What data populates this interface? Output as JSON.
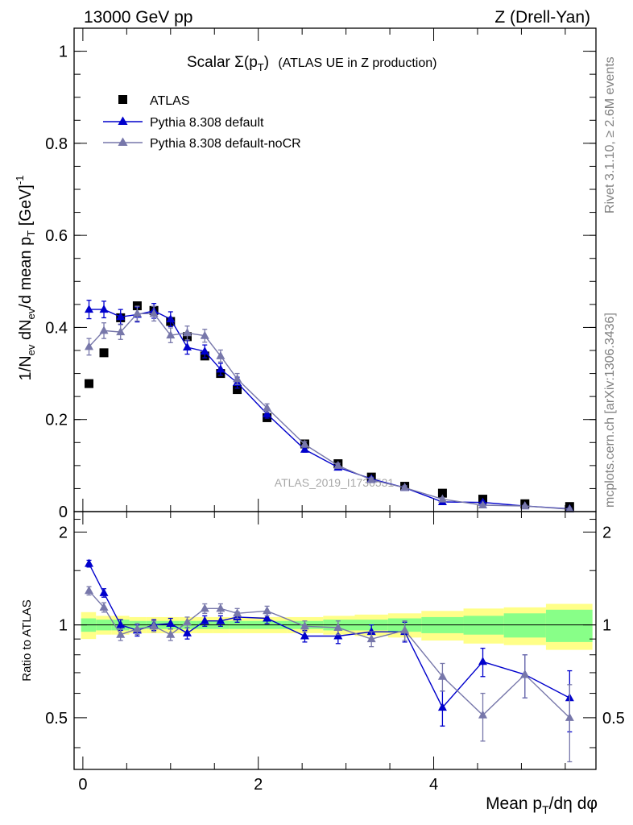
{
  "header": {
    "left": "13000 GeV pp",
    "right": "Z (Drell-Yan)"
  },
  "side_labels": {
    "rivet": "Rivet 3.1.10, ≥ 2.6M events",
    "mcplots": "mcplots.cern.ch [arXiv:1306.3436]"
  },
  "watermark": "ATLAS_2019_I1736531",
  "chart_data": [
    {
      "type": "scatter",
      "panel": "main",
      "title_main": "Scalar Σ(p",
      "title_sub": "T",
      "title_close": ")",
      "title_extra": "(ATLAS UE in Z production)",
      "ylabel": "1/N_ev dN_ev/d mean p_T [GeV]^-1",
      "ylim": [
        0,
        1.05
      ],
      "xlim": [
        -0.1,
        5.85
      ],
      "yticks": [
        0,
        0.2,
        0.4,
        0.6,
        0.8,
        1
      ],
      "ytick_labels": [
        "0",
        "0.2",
        "0.4",
        "0.6",
        "0.8",
        "1"
      ],
      "legend_position": "top-left",
      "x": [
        0.07,
        0.24,
        0.43,
        0.62,
        0.81,
        1.0,
        1.19,
        1.39,
        1.57,
        1.76,
        2.1,
        2.53,
        2.91,
        3.29,
        3.67,
        4.1,
        4.56,
        5.04,
        5.55
      ],
      "series": [
        {
          "name": "ATLAS",
          "color": "#000000",
          "marker": "square",
          "values": [
            0.278,
            0.345,
            0.421,
            0.447,
            0.437,
            0.413,
            0.38,
            0.338,
            0.3,
            0.265,
            0.204,
            0.147,
            0.104,
            0.075,
            0.055,
            0.04,
            0.027,
            0.017,
            0.011
          ],
          "errors": [
            0.006,
            0.006,
            0.006,
            0.006,
            0.006,
            0.006,
            0.006,
            0.005,
            0.005,
            0.005,
            0.004,
            0.003,
            0.003,
            0.002,
            0.002,
            0.002,
            0.002,
            0.001,
            0.001
          ]
        },
        {
          "name": "Pythia 8.308 default",
          "color": "#0000cc",
          "marker": "triangle",
          "values": [
            0.439,
            0.439,
            0.423,
            0.428,
            0.436,
            0.418,
            0.357,
            0.348,
            0.309,
            0.28,
            0.212,
            0.135,
            0.096,
            0.071,
            0.052,
            0.021,
            0.02,
            0.012,
            0.006
          ],
          "errors": [
            0.02,
            0.018,
            0.016,
            0.016,
            0.016,
            0.016,
            0.015,
            0.014,
            0.013,
            0.012,
            0.009,
            0.006,
            0.005,
            0.004,
            0.004,
            0.003,
            0.003,
            0.002,
            0.002
          ]
        },
        {
          "name": "Pythia 8.308 default-noCR",
          "color": "#7777aa",
          "marker": "triangle",
          "values": [
            0.358,
            0.393,
            0.39,
            0.43,
            0.43,
            0.383,
            0.388,
            0.382,
            0.338,
            0.288,
            0.225,
            0.146,
            0.1,
            0.069,
            0.052,
            0.027,
            0.014,
            0.012,
            0.005
          ],
          "errors": [
            0.018,
            0.017,
            0.016,
            0.016,
            0.016,
            0.016,
            0.015,
            0.014,
            0.013,
            0.012,
            0.009,
            0.006,
            0.005,
            0.004,
            0.004,
            0.003,
            0.003,
            0.002,
            0.002
          ]
        }
      ]
    },
    {
      "type": "scatter",
      "panel": "ratio",
      "ylabel": "Ratio to ATLAS",
      "xlabel": "Mean p_T/dη dφ",
      "ylim": [
        0.34,
        2.33
      ],
      "xlim": [
        -0.1,
        5.85
      ],
      "yticks": [
        0.5,
        1,
        2
      ],
      "ytick_labels": [
        "0.5",
        "1",
        "2"
      ],
      "xticks": [
        0,
        2,
        4
      ],
      "xtick_labels": [
        "0",
        "2",
        "4"
      ],
      "bin_edges": [
        -0.02,
        0.15,
        0.33,
        0.53,
        0.72,
        0.91,
        1.1,
        1.29,
        1.48,
        1.67,
        1.86,
        2.33,
        2.74,
        3.1,
        3.48,
        3.86,
        4.34,
        4.8,
        5.28,
        5.81
      ],
      "band_green": [
        0.05,
        0.04,
        0.04,
        0.03,
        0.03,
        0.03,
        0.03,
        0.03,
        0.03,
        0.03,
        0.03,
        0.03,
        0.04,
        0.04,
        0.05,
        0.06,
        0.07,
        0.09,
        0.12
      ],
      "band_yellow": [
        0.1,
        0.07,
        0.07,
        0.06,
        0.06,
        0.06,
        0.06,
        0.06,
        0.06,
        0.06,
        0.06,
        0.06,
        0.07,
        0.08,
        0.09,
        0.11,
        0.13,
        0.14,
        0.17
      ],
      "x": [
        0.07,
        0.24,
        0.43,
        0.62,
        0.81,
        1.0,
        1.19,
        1.39,
        1.57,
        1.76,
        2.1,
        2.53,
        2.91,
        3.29,
        3.67,
        4.1,
        4.56,
        5.04,
        5.55
      ],
      "series": [
        {
          "name": "Pythia 8.308 default",
          "color": "#0000cc",
          "values": [
            1.58,
            1.27,
            1.0,
            0.96,
            1.0,
            1.01,
            0.94,
            1.03,
            1.03,
            1.06,
            1.05,
            0.92,
            0.92,
            0.95,
            0.95,
            0.54,
            0.76,
            0.69,
            0.58
          ],
          "errors": [
            0.04,
            0.04,
            0.04,
            0.04,
            0.04,
            0.04,
            0.04,
            0.04,
            0.04,
            0.04,
            0.04,
            0.04,
            0.05,
            0.05,
            0.07,
            0.07,
            0.08,
            0.11,
            0.13
          ]
        },
        {
          "name": "Pythia 8.308 default-noCR",
          "color": "#7777aa",
          "values": [
            1.29,
            1.14,
            0.93,
            0.97,
            0.99,
            0.93,
            1.02,
            1.13,
            1.13,
            1.09,
            1.11,
            0.99,
            0.98,
            0.9,
            0.96,
            0.68,
            0.51,
            0.69,
            0.5
          ],
          "errors": [
            0.04,
            0.04,
            0.04,
            0.04,
            0.04,
            0.04,
            0.04,
            0.04,
            0.04,
            0.04,
            0.04,
            0.04,
            0.05,
            0.05,
            0.07,
            0.07,
            0.09,
            0.11,
            0.14
          ]
        }
      ]
    }
  ]
}
